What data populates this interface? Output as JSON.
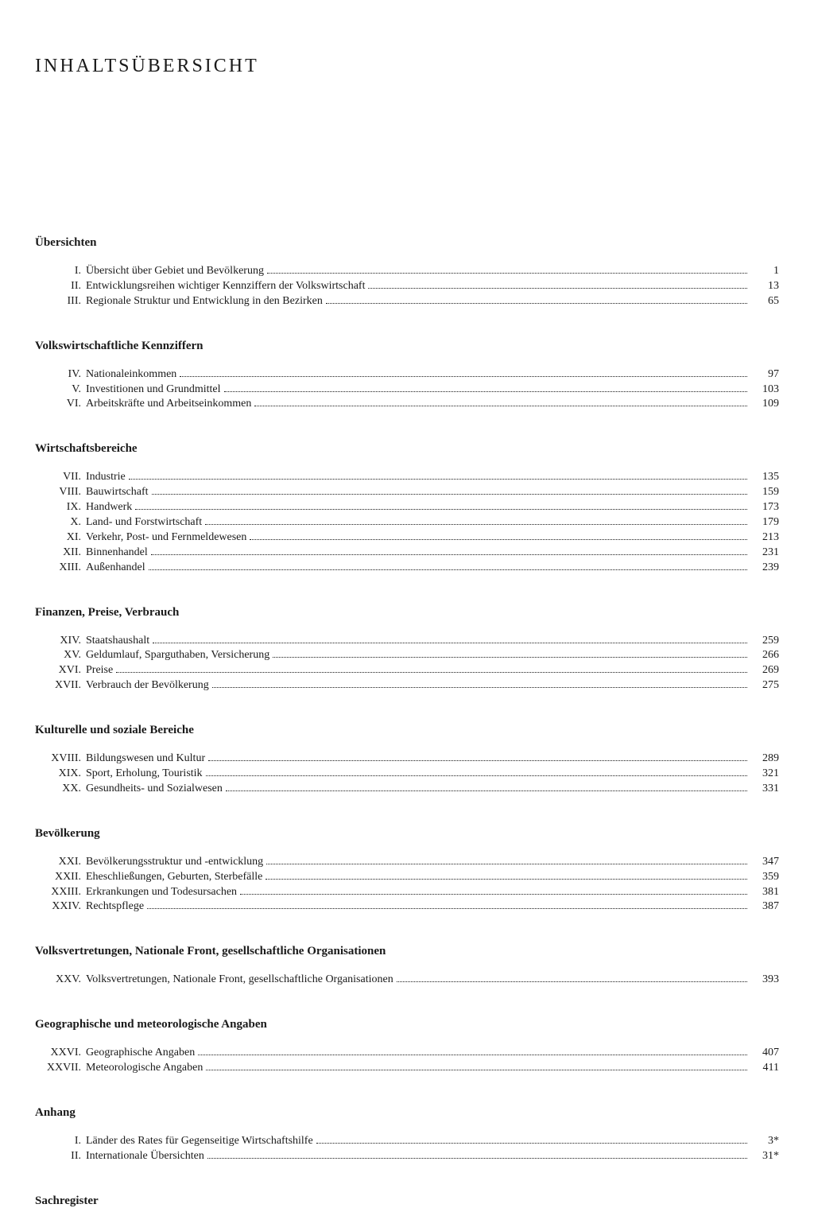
{
  "title": "INHALTSÜBERSICHT",
  "sections": [
    {
      "heading": "Übersichten",
      "entries": [
        {
          "numeral": "I.",
          "title": "Übersicht über Gebiet und Bevölkerung",
          "page": "1"
        },
        {
          "numeral": "II.",
          "title": "Entwicklungsreihen wichtiger Kennziffern der Volkswirtschaft",
          "page": "13"
        },
        {
          "numeral": "III.",
          "title": "Regionale Struktur und Entwicklung in den Bezirken",
          "page": "65"
        }
      ]
    },
    {
      "heading": "Volkswirtschaftliche Kennziffern",
      "entries": [
        {
          "numeral": "IV.",
          "title": "Nationaleinkommen",
          "page": "97"
        },
        {
          "numeral": "V.",
          "title": "Investitionen und Grundmittel",
          "page": "103"
        },
        {
          "numeral": "VI.",
          "title": "Arbeitskräfte und Arbeitseinkommen",
          "page": "109"
        }
      ]
    },
    {
      "heading": "Wirtschaftsbereiche",
      "entries": [
        {
          "numeral": "VII.",
          "title": "Industrie",
          "page": "135"
        },
        {
          "numeral": "VIII.",
          "title": "Bauwirtschaft",
          "page": "159"
        },
        {
          "numeral": "IX.",
          "title": "Handwerk",
          "page": "173"
        },
        {
          "numeral": "X.",
          "title": "Land- und Forstwirtschaft",
          "page": "179"
        },
        {
          "numeral": "XI.",
          "title": "Verkehr, Post- und Fernmeldewesen",
          "page": "213"
        },
        {
          "numeral": "XII.",
          "title": "Binnenhandel",
          "page": "231"
        },
        {
          "numeral": "XIII.",
          "title": "Außenhandel",
          "page": "239"
        }
      ]
    },
    {
      "heading": "Finanzen, Preise, Verbrauch",
      "entries": [
        {
          "numeral": "XIV.",
          "title": "Staatshaushalt",
          "page": "259"
        },
        {
          "numeral": "XV.",
          "title": "Geldumlauf, Sparguthaben, Versicherung",
          "page": "266"
        },
        {
          "numeral": "XVI.",
          "title": "Preise",
          "page": "269"
        },
        {
          "numeral": "XVII.",
          "title": "Verbrauch der Bevölkerung",
          "page": "275"
        }
      ]
    },
    {
      "heading": "Kulturelle und soziale Bereiche",
      "entries": [
        {
          "numeral": "XVIII.",
          "title": "Bildungswesen und Kultur",
          "page": "289"
        },
        {
          "numeral": "XIX.",
          "title": "Sport, Erholung, Touristik",
          "page": "321"
        },
        {
          "numeral": "XX.",
          "title": "Gesundheits- und Sozialwesen",
          "page": "331"
        }
      ]
    },
    {
      "heading": "Bevölkerung",
      "entries": [
        {
          "numeral": "XXI.",
          "title": "Bevölkerungsstruktur und -entwicklung",
          "page": "347"
        },
        {
          "numeral": "XXII.",
          "title": "Eheschließungen, Geburten, Sterbefälle",
          "page": "359"
        },
        {
          "numeral": "XXIII.",
          "title": "Erkrankungen und Todesursachen",
          "page": "381"
        },
        {
          "numeral": "XXIV.",
          "title": "Rechtspflege",
          "page": "387"
        }
      ]
    },
    {
      "heading": "Volksvertretungen, Nationale Front, gesellschaftliche Organisationen",
      "entries": [
        {
          "numeral": "XXV.",
          "title": "Volksvertretungen, Nationale Front, gesellschaftliche Organisationen",
          "page": "393"
        }
      ]
    },
    {
      "heading": "Geographische und meteorologische Angaben",
      "entries": [
        {
          "numeral": "XXVI.",
          "title": "Geographische Angaben",
          "page": "407"
        },
        {
          "numeral": "XXVII.",
          "title": "Meteorologische Angaben",
          "page": "411"
        }
      ]
    },
    {
      "heading": "Anhang",
      "entries": [
        {
          "numeral": "I.",
          "title": "Länder des Rates für Gegenseitige Wirtschaftshilfe",
          "page": "3*"
        },
        {
          "numeral": "II.",
          "title": "Internationale Übersichten",
          "page": "31*"
        }
      ]
    }
  ],
  "final_heading": "Sachregister"
}
